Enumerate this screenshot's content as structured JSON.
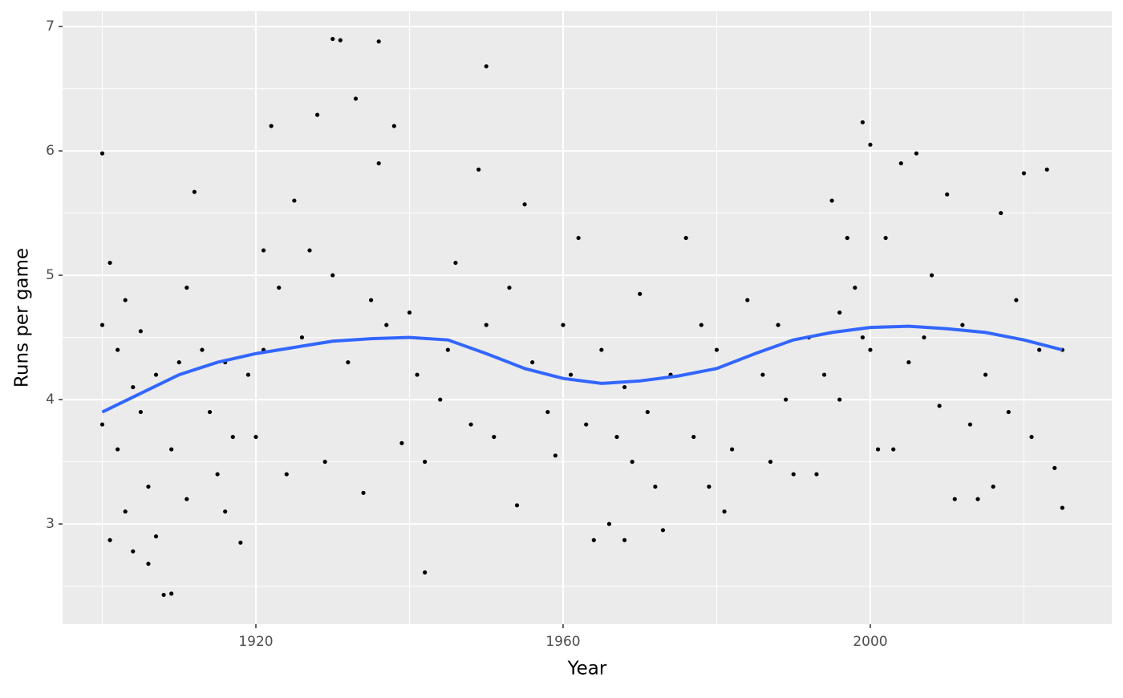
{
  "chart_data": {
    "type": "scatter",
    "x_label": "Year",
    "y_label": "Runs per game",
    "xlim": [
      1894.83,
      2031.44
    ],
    "ylim": [
      2.194,
      7.123
    ],
    "xticks": [
      1920,
      1960,
      2000
    ],
    "yticks": [
      3,
      4,
      5,
      6,
      7
    ],
    "xminor": [
      1900,
      1940,
      1980,
      2020
    ],
    "yminor": [
      2.5,
      3.5,
      4.5,
      5.5,
      6.5
    ],
    "grid": true,
    "series": [
      {
        "name": "points",
        "color": "#000000",
        "x": [
          1900,
          1900,
          1900,
          1901,
          1901,
          1902,
          1902,
          1903,
          1903,
          1904,
          1904,
          1905,
          1905,
          1906,
          1906,
          1907,
          1907,
          1908,
          1909,
          1909,
          1910,
          1911,
          1911,
          1912,
          1913,
          1914,
          1915,
          1916,
          1916,
          1917,
          1918,
          1919,
          1920,
          1921,
          1921,
          1922,
          1923,
          1924,
          1925,
          1926,
          1927,
          1928,
          1929,
          1930,
          1930,
          1931,
          1932,
          1933,
          1934,
          1935,
          1936,
          1936,
          1937,
          1938,
          1939,
          1940,
          1941,
          1942,
          1942,
          1944,
          1945,
          1946,
          1948,
          1949,
          1950,
          1950,
          1951,
          1953,
          1954,
          1955,
          1956,
          1958,
          1959,
          1960,
          1961,
          1962,
          1963,
          1964,
          1965,
          1966,
          1967,
          1968,
          1968,
          1969,
          1970,
          1971,
          1972,
          1973,
          1974,
          1976,
          1977,
          1978,
          1979,
          1980,
          1981,
          1982,
          1984,
          1986,
          1987,
          1988,
          1989,
          1990,
          1992,
          1993,
          1994,
          1995,
          1996,
          1996,
          1997,
          1998,
          1999,
          1999,
          2000,
          2000,
          2001,
          2002,
          2003,
          2004,
          2005,
          2006,
          2007,
          2008,
          2009,
          2010,
          2011,
          2012,
          2013,
          2014,
          2015,
          2016,
          2017,
          2018,
          2019,
          2020,
          2021,
          2022,
          2023,
          2024,
          2025,
          2025
        ],
        "y": [
          5.98,
          4.6,
          3.8,
          2.87,
          5.1,
          4.4,
          3.6,
          4.8,
          3.1,
          2.78,
          4.1,
          3.9,
          4.55,
          2.68,
          3.3,
          4.2,
          2.9,
          2.43,
          2.44,
          3.6,
          4.3,
          3.2,
          4.9,
          5.67,
          4.4,
          3.9,
          3.4,
          3.1,
          4.3,
          3.7,
          2.85,
          4.2,
          3.7,
          5.2,
          4.4,
          6.2,
          4.9,
          3.4,
          5.6,
          4.5,
          5.2,
          6.29,
          3.5,
          6.9,
          5.0,
          6.89,
          4.3,
          6.42,
          3.25,
          4.8,
          6.88,
          5.9,
          4.6,
          6.2,
          3.65,
          4.7,
          4.2,
          2.61,
          3.5,
          4.0,
          4.4,
          5.1,
          3.8,
          5.85,
          6.68,
          4.6,
          3.7,
          4.9,
          3.15,
          5.57,
          4.3,
          3.9,
          3.55,
          4.6,
          4.2,
          5.3,
          3.8,
          2.87,
          4.4,
          3.0,
          3.7,
          4.1,
          2.87,
          3.5,
          4.85,
          3.9,
          3.3,
          2.95,
          4.2,
          5.3,
          3.7,
          4.6,
          3.3,
          4.4,
          3.1,
          3.6,
          4.8,
          4.2,
          3.5,
          4.6,
          4.0,
          3.4,
          4.5,
          3.4,
          4.2,
          5.6,
          4.7,
          4.0,
          5.3,
          4.9,
          4.5,
          6.23,
          4.4,
          6.05,
          3.6,
          5.3,
          3.6,
          5.9,
          4.3,
          5.98,
          4.5,
          5.0,
          3.95,
          5.65,
          3.2,
          4.6,
          3.8,
          3.2,
          4.2,
          3.3,
          5.5,
          3.9,
          4.8,
          5.82,
          3.7,
          4.4,
          5.85,
          3.45,
          4.4,
          3.13
        ]
      },
      {
        "name": "smooth",
        "color": "#3366ff",
        "x": [
          1900,
          1905,
          1910,
          1915,
          1920,
          1925,
          1930,
          1935,
          1940,
          1945,
          1950,
          1955,
          1960,
          1965,
          1970,
          1975,
          1980,
          1985,
          1990,
          1995,
          2000,
          2005,
          2010,
          2015,
          2020,
          2025
        ],
        "y": [
          3.9,
          4.05,
          4.2,
          4.3,
          4.37,
          4.42,
          4.47,
          4.49,
          4.5,
          4.48,
          4.37,
          4.25,
          4.17,
          4.13,
          4.15,
          4.19,
          4.25,
          4.37,
          4.48,
          4.54,
          4.58,
          4.59,
          4.57,
          4.54,
          4.48,
          4.4
        ]
      }
    ]
  }
}
